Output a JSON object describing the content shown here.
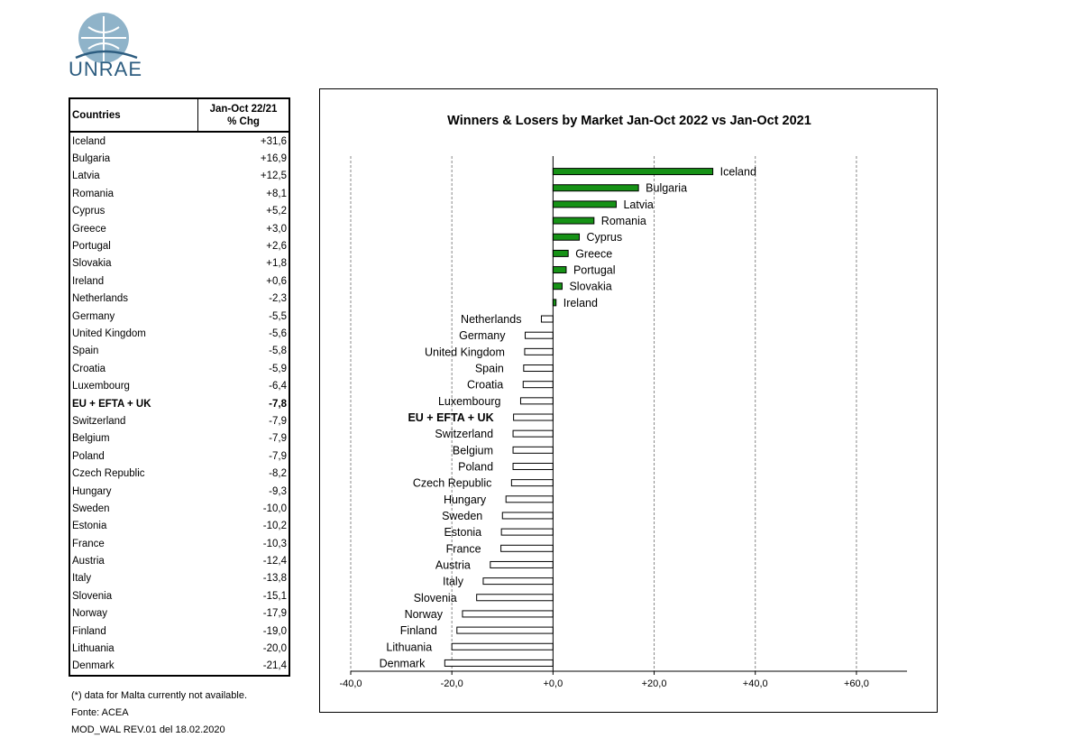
{
  "logo": {
    "text": "UNRAE"
  },
  "table": {
    "header_country": "Countries",
    "header_chg_line1": "Jan-Oct 22/21",
    "header_chg_line2": "% Chg",
    "rows": [
      {
        "country": "Iceland",
        "chg": "+31,6"
      },
      {
        "country": "Bulgaria",
        "chg": "+16,9"
      },
      {
        "country": "Latvia",
        "chg": "+12,5"
      },
      {
        "country": "Romania",
        "chg": "+8,1"
      },
      {
        "country": "Cyprus",
        "chg": "+5,2"
      },
      {
        "country": "Greece",
        "chg": "+3,0"
      },
      {
        "country": "Portugal",
        "chg": "+2,6"
      },
      {
        "country": "Slovakia",
        "chg": "+1,8"
      },
      {
        "country": "Ireland",
        "chg": "+0,6"
      },
      {
        "country": "Netherlands",
        "chg": "-2,3"
      },
      {
        "country": "Germany",
        "chg": "-5,5"
      },
      {
        "country": "United Kingdom",
        "chg": "-5,6"
      },
      {
        "country": "Spain",
        "chg": "-5,8"
      },
      {
        "country": "Croatia",
        "chg": "-5,9"
      },
      {
        "country": "Luxembourg",
        "chg": "-6,4"
      },
      {
        "country": "EU + EFTA + UK",
        "chg": "-7,8",
        "total": true
      },
      {
        "country": "Switzerland",
        "chg": "-7,9"
      },
      {
        "country": "Belgium",
        "chg": "-7,9"
      },
      {
        "country": "Poland",
        "chg": "-7,9"
      },
      {
        "country": "Czech Republic",
        "chg": "-8,2"
      },
      {
        "country": "Hungary",
        "chg": "-9,3"
      },
      {
        "country": "Sweden",
        "chg": "-10,0"
      },
      {
        "country": "Estonia",
        "chg": "-10,2"
      },
      {
        "country": "France",
        "chg": "-10,3"
      },
      {
        "country": "Austria",
        "chg": "-12,4"
      },
      {
        "country": "Italy",
        "chg": "-13,8"
      },
      {
        "country": "Slovenia",
        "chg": "-15,1"
      },
      {
        "country": "Norway",
        "chg": "-17,9"
      },
      {
        "country": "Finland",
        "chg": "-19,0"
      },
      {
        "country": "Lithuania",
        "chg": "-20,0"
      },
      {
        "country": "Denmark",
        "chg": "-21,4"
      }
    ]
  },
  "footnotes": {
    "note": "(*) data for Malta currently not available.",
    "source": "Fonte: ACEA",
    "form": "MOD_WAL REV.01 del 18.02.2020"
  },
  "colors": {
    "positive": "#169216",
    "negative": "#ffffff",
    "outline": "#000000"
  },
  "chart_data": {
    "type": "bar",
    "orientation": "horizontal",
    "title": "Winners & Losers by Market  Jan-Oct 2022 vs Jan-Oct 2021",
    "xlabel": "",
    "ylabel": "",
    "xlim": [
      -40,
      70
    ],
    "grid": "vertical-dashed",
    "xticks": [
      -40,
      -20,
      0,
      20,
      40,
      60
    ],
    "xtick_labels": [
      "-40,0",
      "-20,0",
      "+0,0",
      "+20,0",
      "+40,0",
      "+60,0"
    ],
    "categories": [
      "Iceland",
      "Bulgaria",
      "Latvia",
      "Romania",
      "Cyprus",
      "Greece",
      "Portugal",
      "Slovakia",
      "Ireland",
      "Netherlands",
      "Germany",
      "United Kingdom",
      "Spain",
      "Croatia",
      "Luxembourg",
      "EU + EFTA + UK",
      "Switzerland",
      "Belgium",
      "Poland",
      "Czech Republic",
      "Hungary",
      "Sweden",
      "Estonia",
      "France",
      "Austria",
      "Italy",
      "Slovenia",
      "Norway",
      "Finland",
      "Lithuania",
      "Denmark"
    ],
    "values": [
      31.6,
      16.9,
      12.5,
      8.1,
      5.2,
      3.0,
      2.6,
      1.8,
      0.6,
      -2.3,
      -5.5,
      -5.6,
      -5.8,
      -5.9,
      -6.4,
      -7.8,
      -7.9,
      -7.9,
      -7.9,
      -8.2,
      -9.3,
      -10.0,
      -10.2,
      -10.3,
      -12.4,
      -13.8,
      -15.1,
      -17.9,
      -19.0,
      -20.0,
      -21.4
    ],
    "bold_categories": [
      "EU + EFTA + UK"
    ]
  }
}
